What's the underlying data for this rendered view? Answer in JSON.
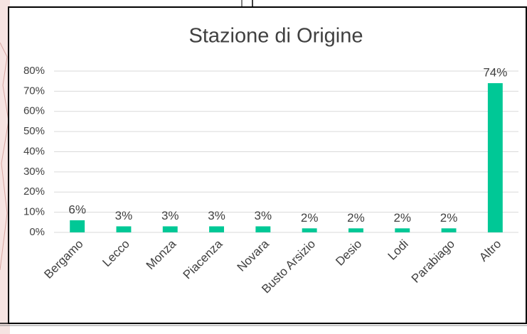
{
  "chart_data": {
    "type": "bar",
    "title": "Stazione di Origine",
    "categories": [
      "Bergamo",
      "Lecco",
      "Monza",
      "Piacenza",
      "Novara",
      "Busto Arsizio",
      "Desio",
      "Lodi",
      "Parabiago",
      "Altro"
    ],
    "values": [
      6,
      3,
      3,
      3,
      3,
      2,
      2,
      2,
      2,
      74
    ],
    "value_labels": [
      "6%",
      "3%",
      "3%",
      "3%",
      "3%",
      "2%",
      "2%",
      "2%",
      "2%",
      "74%"
    ],
    "color": "#00c896",
    "ylim": [
      0,
      80
    ],
    "yticks": [
      {
        "value": 0,
        "label": "0%"
      },
      {
        "value": 10,
        "label": "10%"
      },
      {
        "value": 20,
        "label": "20%"
      },
      {
        "value": 30,
        "label": "30%"
      },
      {
        "value": 40,
        "label": "40%"
      },
      {
        "value": 50,
        "label": "50%"
      },
      {
        "value": 60,
        "label": "60%"
      },
      {
        "value": 70,
        "label": "70%"
      },
      {
        "value": 80,
        "label": "80%"
      }
    ],
    "grid": true
  }
}
